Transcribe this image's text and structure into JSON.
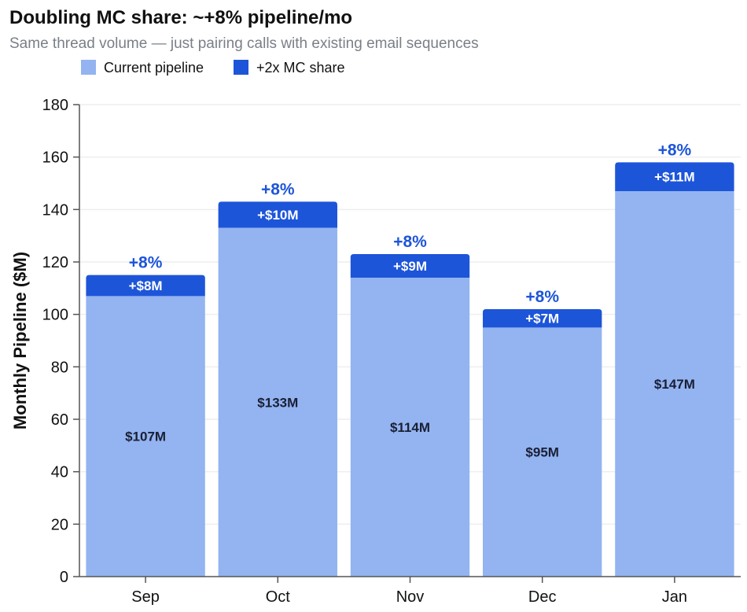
{
  "title": "Doubling MC share: ~+8% pipeline/mo",
  "subtitle": "Same thread volume — just pairing calls with existing email sequences",
  "colors": {
    "current": "#93b4f0",
    "added": "#1d55d9",
    "pct_text": "#1d55d9",
    "grid": "#eeeeee",
    "axis": "#555555"
  },
  "chart_data": {
    "type": "bar",
    "stacked": true,
    "categories": [
      "Sep",
      "Oct",
      "Nov",
      "Dec",
      "Jan"
    ],
    "series": [
      {
        "name": "Current pipeline",
        "values": [
          107,
          133,
          114,
          95,
          147
        ]
      },
      {
        "name": "+2x MC share",
        "values": [
          8,
          10,
          9,
          7,
          11
        ]
      }
    ],
    "base_labels": [
      "$107M",
      "$133M",
      "$114M",
      "$95M",
      "$147M"
    ],
    "added_labels": [
      "+$8M",
      "+$10M",
      "+$9M",
      "+$7M",
      "+$11M"
    ],
    "pct_labels": [
      "+8%",
      "+8%",
      "+8%",
      "+8%",
      "+8%"
    ],
    "ylabel": "Monthly Pipeline ($M)",
    "xlabel": "",
    "ylim": [
      0,
      180
    ],
    "yticks": [
      0,
      20,
      40,
      60,
      80,
      100,
      120,
      140,
      160,
      180
    ],
    "legend": [
      "Current pipeline",
      "+2x MC share"
    ],
    "legend_position": "top-left",
    "grid": true
  }
}
